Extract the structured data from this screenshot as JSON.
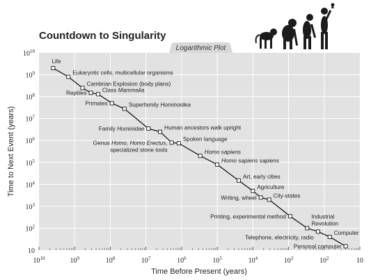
{
  "chart_data": {
    "type": "scatter",
    "title": "Countdown to Singularity",
    "subtitle": "Logarithmic Plot",
    "xlabel": "Time Before Present (years)",
    "ylabel": "Time to Next Event (years)",
    "x_scale": "log",
    "y_scale": "log",
    "x_reversed": true,
    "xlim": [
      10000000000,
      10
    ],
    "ylim": [
      10,
      10000000000
    ],
    "grid": true,
    "x_ticks": [
      {
        "base": "10",
        "exp": "10"
      },
      {
        "base": "10",
        "exp": "9"
      },
      {
        "base": "10",
        "exp": "8"
      },
      {
        "base": "10",
        "exp": "7"
      },
      {
        "base": "10",
        "exp": "6"
      },
      {
        "base": "10",
        "exp": "5"
      },
      {
        "base": "10",
        "exp": "4"
      },
      {
        "base": "10",
        "exp": "3"
      },
      {
        "base": "10",
        "exp": "2"
      },
      {
        "base": "10",
        "exp": ""
      }
    ],
    "y_ticks": [
      {
        "base": "10",
        "exp": "10"
      },
      {
        "base": "10",
        "exp": "9"
      },
      {
        "base": "10",
        "exp": "8"
      },
      {
        "base": "10",
        "exp": "7"
      },
      {
        "base": "10",
        "exp": "6"
      },
      {
        "base": "10",
        "exp": "5"
      },
      {
        "base": "10",
        "exp": "4"
      },
      {
        "base": "10",
        "exp": "3"
      },
      {
        "base": "10",
        "exp": "2"
      },
      {
        "base": "10",
        "exp": ""
      }
    ],
    "points": [
      {
        "x": 4000000000,
        "y": 2000000000,
        "label": [
          {
            "t": "Life"
          }
        ],
        "pos": "above"
      },
      {
        "x": 1500000000,
        "y": 800000000,
        "label": [
          {
            "t": "Eukaryotic cells, multicellular organisms"
          }
        ],
        "pos": "right"
      },
      {
        "x": 600000000,
        "y": 250000000,
        "label": [
          {
            "t": "Cambrian Explosion (body plans)"
          }
        ],
        "pos": "right"
      },
      {
        "x": 350000000,
        "y": 150000000,
        "label": [
          {
            "t": "Reptiles"
          }
        ],
        "pos": "left"
      },
      {
        "x": 220000000,
        "y": 130000000,
        "label": [
          {
            "t": "Class "
          },
          {
            "t": "Mammalia",
            "i": true
          }
        ],
        "pos": "right"
      },
      {
        "x": 90000000,
        "y": 50000000,
        "label": [
          {
            "t": "Primates"
          }
        ],
        "pos": "left"
      },
      {
        "x": 40000000,
        "y": 28000000,
        "label": [
          {
            "t": "Superfamily "
          },
          {
            "t": "Hominoidea",
            "i": true
          }
        ],
        "pos": "right"
      },
      {
        "x": 8500000,
        "y": 3500000,
        "label": [
          {
            "t": "Family "
          },
          {
            "t": "Hominidae",
            "i": true
          }
        ],
        "pos": "left"
      },
      {
        "x": 4000000,
        "y": 2500000,
        "label": [
          {
            "t": "Human ancestors walk upright"
          }
        ],
        "pos": "right"
      },
      {
        "x": 1900000,
        "y": 800000,
        "label": [
          {
            "t": "Genus "
          },
          {
            "t": "Homo, Homo Erectus",
            "i": true
          },
          {
            "t": ","
          }
        ],
        "label2": [
          {
            "t": "specialized stone tools"
          }
        ],
        "pos": "left"
      },
      {
        "x": 1200000,
        "y": 750000,
        "label": [
          {
            "t": "Spoken language"
          }
        ],
        "pos": "right"
      },
      {
        "x": 300000,
        "y": 200000,
        "label": [
          {
            "t": "Homo sapiens",
            "i": true
          }
        ],
        "pos": "right"
      },
      {
        "x": 100000,
        "y": 80000,
        "label": [
          {
            "t": "Homo sapiens sapiens",
            "i": true
          }
        ],
        "pos": "right"
      },
      {
        "x": 25000,
        "y": 15000,
        "label": [
          {
            "t": "Art, early cities"
          }
        ],
        "pos": "right"
      },
      {
        "x": 10000,
        "y": 5000,
        "label": [
          {
            "t": "Agriculture"
          }
        ],
        "pos": "right"
      },
      {
        "x": 6000,
        "y": 2500,
        "label": [
          {
            "t": "Writing, wheel"
          }
        ],
        "pos": "left"
      },
      {
        "x": 3500,
        "y": 2000,
        "label": [
          {
            "t": "City-states"
          }
        ],
        "pos": "right"
      },
      {
        "x": 900,
        "y": 350,
        "label": [
          {
            "t": "Printing, experimental method"
          }
        ],
        "pos": "left"
      },
      {
        "x": 300,
        "y": 100,
        "label": [
          {
            "t": "Industrial"
          }
        ],
        "label2": [
          {
            "t": "Revolution"
          }
        ],
        "pos": "right-up"
      },
      {
        "x": 150,
        "y": 70,
        "label": [
          {
            "t": "Telephone,  electricity, radio"
          }
        ],
        "pos": "left-down"
      },
      {
        "x": 70,
        "y": 40,
        "label": [
          {
            "t": "Computer"
          }
        ],
        "pos": "right"
      },
      {
        "x": 25,
        "y": 15,
        "label": [
          {
            "t": "Personal computer"
          }
        ],
        "pos": "left"
      }
    ]
  },
  "colors": {
    "plot_background": "#e2e2e2",
    "grid": "#ffffff",
    "line": "#1a1a1a",
    "marker_fill": "#ffffff",
    "tab_background": "#d8d8d8"
  },
  "decoration": {
    "illustration": "evolution-of-man-silhouettes"
  }
}
